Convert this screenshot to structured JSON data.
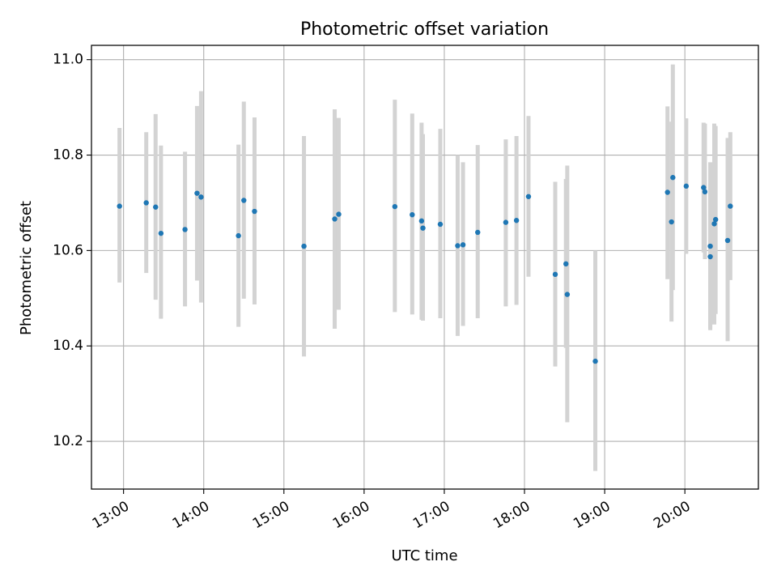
{
  "chart_data": {
    "type": "scatter",
    "title": "Photometric offset variation",
    "xlabel": "UTC time",
    "ylabel": "Photometric offset",
    "x_is_time": true,
    "xlim": [
      "12:36",
      "20:55"
    ],
    "ylim": [
      10.1,
      11.03
    ],
    "grid": true,
    "x_ticks": [
      "13:00",
      "14:00",
      "15:00",
      "16:00",
      "17:00",
      "18:00",
      "19:00",
      "20:00"
    ],
    "y_ticks": [
      "10.2",
      "10.4",
      "10.6",
      "10.8",
      "11.0"
    ],
    "colors": {
      "marker": "#1f77b4",
      "errorbar": "#d3d3d3",
      "grid": "#b0b0b0",
      "axes": "#000000"
    },
    "series": [
      {
        "points": [
          {
            "x": "12:57",
            "y": 10.693,
            "ylo": 10.533,
            "yhi": 10.857
          },
          {
            "x": "13:17",
            "y": 10.7,
            "ylo": 10.553,
            "yhi": 10.848
          },
          {
            "x": "13:24",
            "y": 10.691,
            "ylo": 10.497,
            "yhi": 10.886
          },
          {
            "x": "13:28",
            "y": 10.636,
            "ylo": 10.457,
            "yhi": 10.82
          },
          {
            "x": "13:46",
            "y": 10.644,
            "ylo": 10.483,
            "yhi": 10.807
          },
          {
            "x": "13:55",
            "y": 10.72,
            "ylo": 10.537,
            "yhi": 10.903
          },
          {
            "x": "13:58",
            "y": 10.712,
            "ylo": 10.491,
            "yhi": 10.934
          },
          {
            "x": "14:26",
            "y": 10.631,
            "ylo": 10.44,
            "yhi": 10.822
          },
          {
            "x": "14:30",
            "y": 10.705,
            "ylo": 10.499,
            "yhi": 10.912
          },
          {
            "x": "14:38",
            "y": 10.682,
            "ylo": 10.487,
            "yhi": 10.879
          },
          {
            "x": "15:15",
            "y": 10.609,
            "ylo": 10.378,
            "yhi": 10.84
          },
          {
            "x": "15:38",
            "y": 10.666,
            "ylo": 10.436,
            "yhi": 10.896
          },
          {
            "x": "15:41",
            "y": 10.676,
            "ylo": 10.476,
            "yhi": 10.878
          },
          {
            "x": "16:23",
            "y": 10.692,
            "ylo": 10.471,
            "yhi": 10.916
          },
          {
            "x": "16:36",
            "y": 10.675,
            "ylo": 10.466,
            "yhi": 10.887
          },
          {
            "x": "16:43",
            "y": 10.662,
            "ylo": 10.455,
            "yhi": 10.868
          },
          {
            "x": "16:44",
            "y": 10.647,
            "ylo": 10.453,
            "yhi": 10.844
          },
          {
            "x": "16:57",
            "y": 10.655,
            "ylo": 10.458,
            "yhi": 10.855
          },
          {
            "x": "17:10",
            "y": 10.61,
            "ylo": 10.421,
            "yhi": 10.8
          },
          {
            "x": "17:14",
            "y": 10.612,
            "ylo": 10.442,
            "yhi": 10.785
          },
          {
            "x": "17:25",
            "y": 10.638,
            "ylo": 10.458,
            "yhi": 10.821
          },
          {
            "x": "17:46",
            "y": 10.659,
            "ylo": 10.483,
            "yhi": 10.833
          },
          {
            "x": "17:54",
            "y": 10.663,
            "ylo": 10.486,
            "yhi": 10.84
          },
          {
            "x": "18:03",
            "y": 10.713,
            "ylo": 10.545,
            "yhi": 10.882
          },
          {
            "x": "18:23",
            "y": 10.55,
            "ylo": 10.357,
            "yhi": 10.744
          },
          {
            "x": "18:31",
            "y": 10.572,
            "ylo": 10.396,
            "yhi": 10.75
          },
          {
            "x": "18:32",
            "y": 10.508,
            "ylo": 10.24,
            "yhi": 10.778
          },
          {
            "x": "18:53",
            "y": 10.368,
            "ylo": 10.138,
            "yhi": 10.6
          },
          {
            "x": "19:47",
            "y": 10.722,
            "ylo": 10.54,
            "yhi": 10.902
          },
          {
            "x": "19:50",
            "y": 10.66,
            "ylo": 10.451,
            "yhi": 10.87
          },
          {
            "x": "19:51",
            "y": 10.753,
            "ylo": 10.517,
            "yhi": 10.99
          },
          {
            "x": "20:01",
            "y": 10.735,
            "ylo": 10.593,
            "yhi": 10.877
          },
          {
            "x": "20:14",
            "y": 10.732,
            "ylo": 10.596,
            "yhi": 10.868
          },
          {
            "x": "20:15",
            "y": 10.723,
            "ylo": 10.582,
            "yhi": 10.866
          },
          {
            "x": "20:19",
            "y": 10.609,
            "ylo": 10.433,
            "yhi": 10.785
          },
          {
            "x": "20:19",
            "y": 10.587,
            "ylo": 10.436,
            "yhi": 10.74
          },
          {
            "x": "20:22",
            "y": 10.656,
            "ylo": 10.445,
            "yhi": 10.866
          },
          {
            "x": "20:23",
            "y": 10.665,
            "ylo": 10.467,
            "yhi": 10.861
          },
          {
            "x": "20:32",
            "y": 10.621,
            "ylo": 10.41,
            "yhi": 10.836
          },
          {
            "x": "20:34",
            "y": 10.693,
            "ylo": 10.538,
            "yhi": 10.848
          }
        ]
      }
    ]
  }
}
